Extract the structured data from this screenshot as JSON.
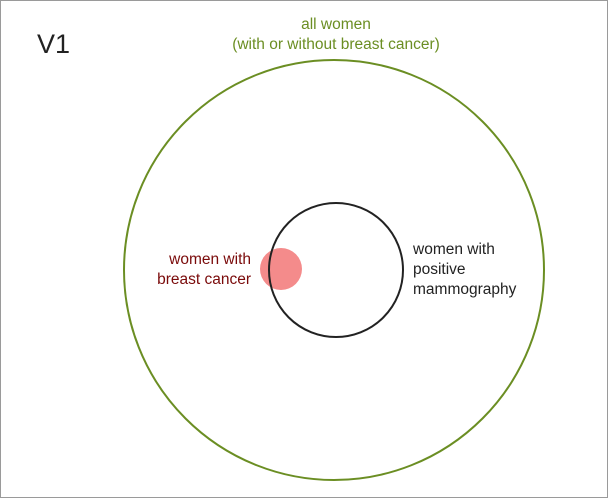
{
  "diagram": {
    "version": "V1",
    "outer_set": {
      "label_line1": "all women",
      "label_line2": "(with or without breast cancer)",
      "color": "#6b8e23"
    },
    "cancer_set": {
      "label_line1": "women with",
      "label_line2": "breast cancer",
      "color": "#f48b8b",
      "label_color": "#7a0a0a"
    },
    "mammography_set": {
      "label_line1": "women with",
      "label_line2": "positive",
      "label_line3": "mammography",
      "color": "#222222"
    }
  }
}
